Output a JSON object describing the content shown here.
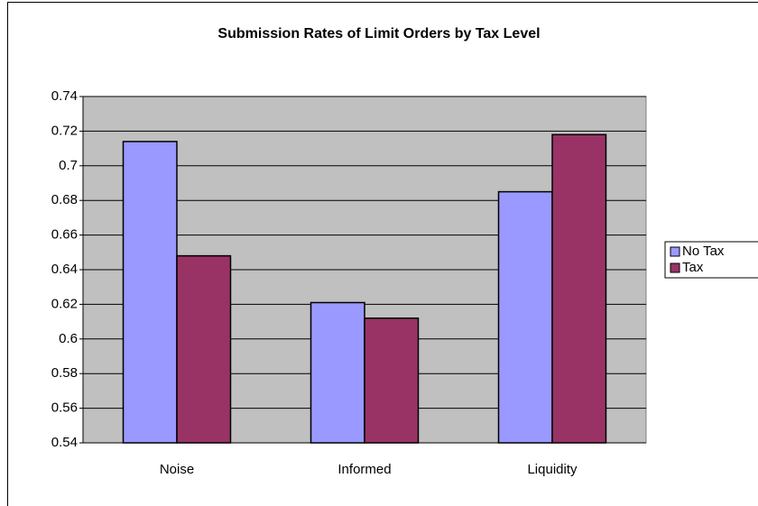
{
  "chart_data": {
    "type": "bar",
    "title": "Submission Rates of Limit Orders by Tax Level",
    "categories": [
      "Noise",
      "Informed",
      "Liquidity"
    ],
    "series": [
      {
        "name": "No Tax",
        "color": "#9999ff",
        "values": [
          0.714,
          0.621,
          0.685
        ]
      },
      {
        "name": "Tax",
        "color": "#993366",
        "values": [
          0.648,
          0.612,
          0.718
        ]
      }
    ],
    "ylim": [
      0.54,
      0.74
    ],
    "yticks": [
      0.54,
      0.56,
      0.58,
      0.6,
      0.62,
      0.64,
      0.66,
      0.68,
      0.7,
      0.72,
      0.74
    ],
    "grid": true,
    "legend": "right"
  }
}
